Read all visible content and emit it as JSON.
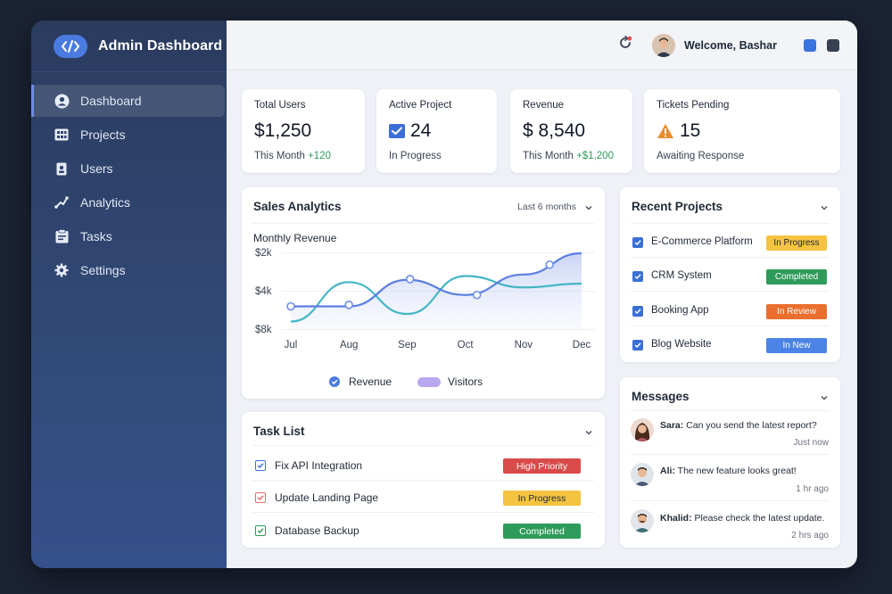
{
  "app": {
    "title": "Admin Dashboard"
  },
  "sidebar": {
    "items": [
      {
        "label": "Dashboard",
        "icon": "user-circle-icon",
        "active": true
      },
      {
        "label": "Projects",
        "icon": "grid-icon",
        "active": false
      },
      {
        "label": "Users",
        "icon": "user-badge-icon",
        "active": false
      },
      {
        "label": "Analytics",
        "icon": "analytics-icon",
        "active": false
      },
      {
        "label": "Tasks",
        "icon": "clipboard-icon",
        "active": false
      },
      {
        "label": "Settings",
        "icon": "gear-icon",
        "active": false
      }
    ]
  },
  "topbar": {
    "welcome": "Welcome, Bashar"
  },
  "stats": {
    "total_users": {
      "label": "Total Users",
      "value": "$1,250",
      "sub_prefix": "This Month ",
      "sub_delta": "+120"
    },
    "active_project": {
      "label": "Active Project",
      "value": "24",
      "sub": "In Progress"
    },
    "revenue": {
      "label": "Revenue",
      "value": "$ 8,540",
      "sub_prefix": "This Month ",
      "sub_delta": "+$1,200"
    },
    "tickets": {
      "label": "Tickets Pending",
      "value": "15",
      "sub": "Awaiting Response"
    }
  },
  "sales": {
    "title": "Sales Analytics",
    "range": "Last 6 months",
    "subtitle": "Monthly Revenue",
    "legend_revenue": "Revenue",
    "legend_visitors": "Visitors"
  },
  "chart_data": {
    "type": "line",
    "title": "Monthly Revenue",
    "categories": [
      "Jul",
      "Aug",
      "Sep",
      "Oct",
      "Nov",
      "Dec"
    ],
    "y_ticks": [
      "$2k",
      "$4k",
      "$8k"
    ],
    "series": [
      {
        "name": "Revenue",
        "values": [
          0.3,
          0.3,
          0.65,
          0.45,
          0.72,
          1.0
        ],
        "color": "#5b7fe0"
      },
      {
        "name": "Visitors",
        "values": [
          0.1,
          0.62,
          0.2,
          0.7,
          0.55,
          0.6
        ],
        "color": "#44b6c6"
      }
    ],
    "markers": [
      {
        "x": 0.0,
        "y": 0.3
      },
      {
        "x": 1.0,
        "y": 0.32
      },
      {
        "x": 2.05,
        "y": 0.66
      },
      {
        "x": 3.2,
        "y": 0.45
      },
      {
        "x": 4.45,
        "y": 0.85
      }
    ]
  },
  "tasks": {
    "title": "Task List",
    "items": [
      {
        "label": "Fix API Integration",
        "badge": "High Priority",
        "color": "#d94a4a",
        "check_color": "#3b6fd6"
      },
      {
        "label": "Update Landing Page",
        "badge": "In Progress",
        "color": "#f5c342",
        "check_color": "#e46c6c"
      },
      {
        "label": "Database Backup",
        "badge": "Completed",
        "color": "#2e9b5a",
        "check_color": "#2e9b5a"
      }
    ]
  },
  "projects": {
    "title": "Recent Projects",
    "items": [
      {
        "label": "E-Commerce Platform",
        "badge": "In Progress",
        "color": "#f5c342"
      },
      {
        "label": "CRM System",
        "badge": "Completed",
        "color": "#2e9b5a"
      },
      {
        "label": "Booking App",
        "badge": "In Review",
        "color": "#ea6f2e"
      },
      {
        "label": "Blog Website",
        "badge": "In New",
        "color": "#4b83e6"
      }
    ]
  },
  "messages": {
    "title": "Messages",
    "items": [
      {
        "name": "Sara:",
        "text": " Can you send the latest report?",
        "time": "Just now"
      },
      {
        "name": "Ali:",
        "text": " The new feature looks great!",
        "time": "1 hr ago"
      },
      {
        "name": "Khalid:",
        "text": " Please check the latest update.",
        "time": "2 hrs ago"
      }
    ]
  }
}
